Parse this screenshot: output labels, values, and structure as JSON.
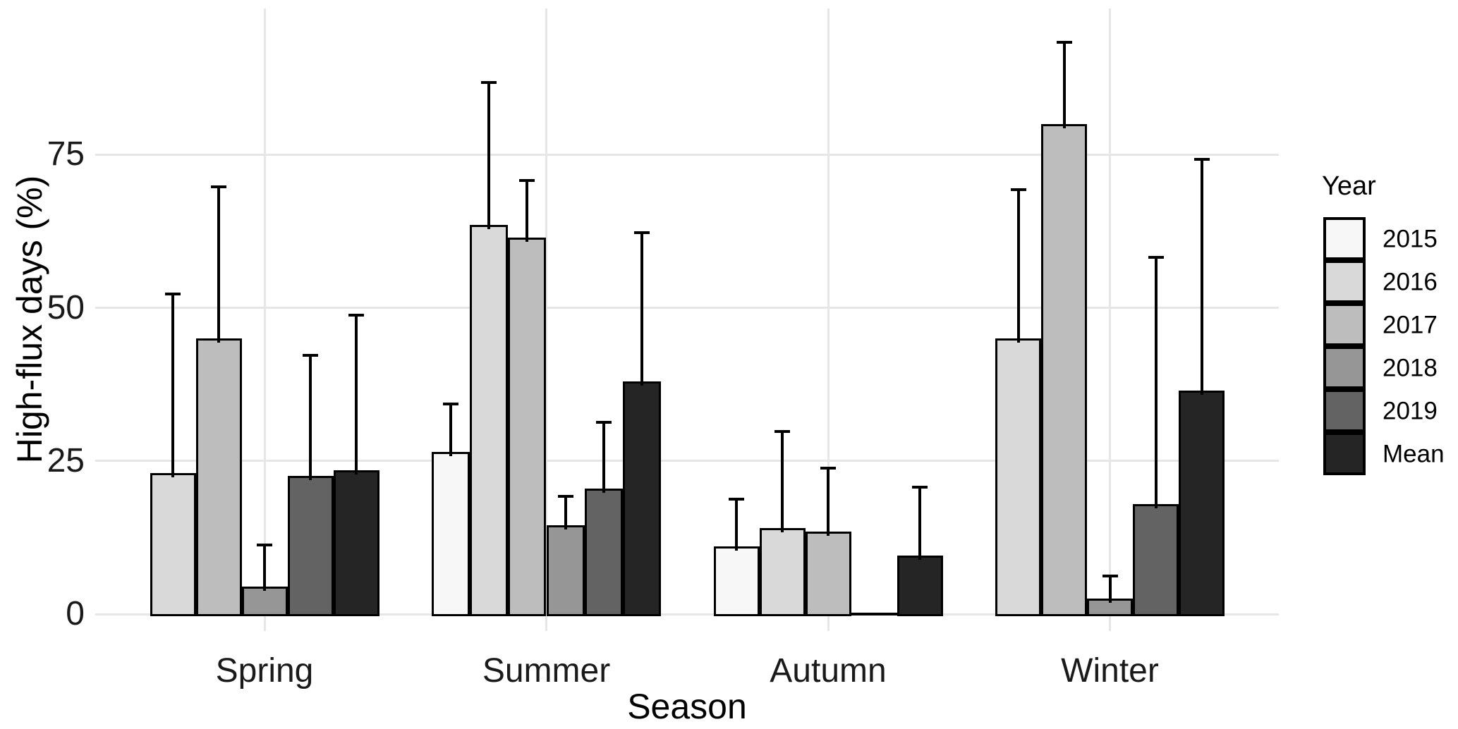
{
  "chart_data": {
    "type": "bar",
    "title": "",
    "xlabel": "Season",
    "ylabel": "High-flux days (%)",
    "legend_title": "Year",
    "legend_position": "right",
    "categories": [
      "Spring",
      "Summer",
      "Autumn",
      "Winter"
    ],
    "yticks": [
      0,
      25,
      50,
      75
    ],
    "ylim": [
      0,
      98
    ],
    "grid": "major-only",
    "bar_outline_color": "#000000",
    "error_bars": "upper-only",
    "series": [
      {
        "name": "2015",
        "color": "#F7F7F7",
        "values": [
          null,
          26.5,
          11,
          null
        ],
        "errors_upper": [
          null,
          34.5,
          19,
          null
        ]
      },
      {
        "name": "2016",
        "color": "#D9D9D9",
        "values": [
          23,
          63.5,
          14,
          45
        ],
        "errors_upper": [
          52.5,
          87,
          30,
          69.5
        ]
      },
      {
        "name": "2017",
        "color": "#BDBDBD",
        "values": [
          45,
          61.5,
          13.5,
          80
        ],
        "errors_upper": [
          70,
          71,
          24,
          93.5
        ]
      },
      {
        "name": "2018",
        "color": "#969696",
        "values": [
          4.5,
          14.5,
          0,
          2.5
        ],
        "errors_upper": [
          11.5,
          19.5,
          null,
          6.5
        ]
      },
      {
        "name": "2019",
        "color": "#636363",
        "values": [
          22.5,
          20.5,
          null,
          18
        ],
        "errors_upper": [
          42.5,
          31.5,
          null,
          58.5
        ]
      },
      {
        "name": "Mean",
        "color": "#252525",
        "values": [
          23.5,
          38,
          9.5,
          36.5
        ],
        "errors_upper": [
          49,
          62.5,
          21,
          74.5
        ]
      }
    ]
  }
}
